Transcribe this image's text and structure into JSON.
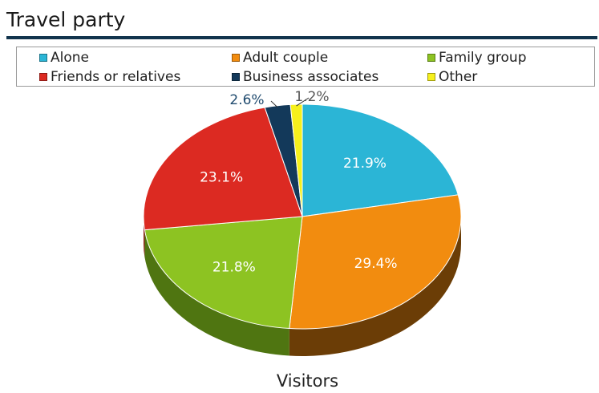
{
  "title": "Travel party",
  "chart_data": {
    "type": "pie",
    "title": "Travel party",
    "xlabel": "Visitors",
    "legend_position": "top",
    "series": [
      {
        "name": "Alone",
        "value": 21.9,
        "label": "21.9%",
        "color": "#2bb5d6",
        "dark": "#1b7d96",
        "label_color": "#ffffff"
      },
      {
        "name": "Adult couple",
        "value": 29.4,
        "label": "29.4%",
        "color": "#f28c0f",
        "dark": "#6b3d06",
        "label_color": "#ffffff"
      },
      {
        "name": "Family group",
        "value": 21.8,
        "label": "21.8%",
        "color": "#8dc322",
        "dark": "#4f7511",
        "label_color": "#ffffff"
      },
      {
        "name": "Friends or relatives",
        "value": 23.1,
        "label": "23.1%",
        "color": "#dc2a22",
        "dark": "#8f1914",
        "label_color": "#ffffff"
      },
      {
        "name": "Business associates",
        "value": 2.6,
        "label": "2.6%",
        "color": "#13395a",
        "dark": "#0a1f33",
        "label_color": "#1f4a6e"
      },
      {
        "name": "Other",
        "value": 1.2,
        "label": "1.2%",
        "color": "#f6f01c",
        "dark": "#9a9410",
        "label_color": "#555555"
      }
    ]
  }
}
